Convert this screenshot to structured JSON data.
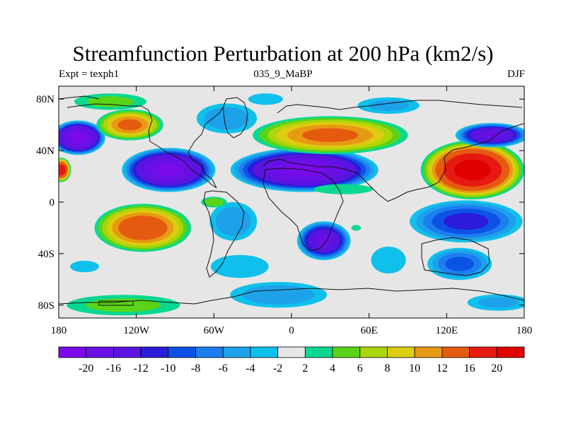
{
  "title": "Streamfunction Perturbation at 200 hPa (km2/s)",
  "subtitle_left": "Expt = texph1",
  "subtitle_center": "035_9_MaBP",
  "subtitle_right": "DJF",
  "x_ticks": [
    {
      "value": -180,
      "label": "180"
    },
    {
      "value": -120,
      "label": "120W"
    },
    {
      "value": -60,
      "label": "60W"
    },
    {
      "value": 0,
      "label": "0"
    },
    {
      "value": 60,
      "label": "60E"
    },
    {
      "value": 120,
      "label": "120E"
    },
    {
      "value": 180,
      "label": "180"
    }
  ],
  "y_ticks": [
    {
      "value": 80,
      "label": "80N"
    },
    {
      "value": 40,
      "label": "40N"
    },
    {
      "value": 0,
      "label": "0"
    },
    {
      "value": -40,
      "label": "40S"
    },
    {
      "value": -80,
      "label": "80S"
    }
  ],
  "colorbar": {
    "colors": [
      "#7a0aea",
      "#6a10e6",
      "#5a14e0",
      "#2a1cd8",
      "#0d52e6",
      "#1d7ef0",
      "#1da2ea",
      "#10c0ec",
      "#e6e6e6",
      "#0ad890",
      "#5ad418",
      "#aad60a",
      "#ddcc10",
      "#e69a14",
      "#e65a10",
      "#e61a10",
      "#e00000"
    ],
    "labels": [
      "-20",
      "-16",
      "-12",
      "-10",
      "-8",
      "-6",
      "-4",
      "-2",
      "2",
      "4",
      "6",
      "8",
      "10",
      "12",
      "16",
      "20"
    ]
  },
  "map_data": {
    "type": "filled-contour-map",
    "variable": "streamfunction perturbation",
    "units": "km2/s",
    "level": "200 hPa",
    "lon_range": [
      -180,
      180
    ],
    "lat_range": [
      -90,
      90
    ],
    "background_color": "#e6e6e6",
    "anomalies": [
      {
        "lon": -165,
        "lat": 50,
        "rx": 22,
        "ry": 14,
        "value": -21
      },
      {
        "lon": -178,
        "lat": 25,
        "rx": 8,
        "ry": 10,
        "value": 18
      },
      {
        "lon": -125,
        "lat": 60,
        "rx": 28,
        "ry": 13,
        "value": 12
      },
      {
        "lon": -140,
        "lat": 78,
        "rx": 35,
        "ry": 8,
        "value": 4
      },
      {
        "lon": -95,
        "lat": 25,
        "rx": 38,
        "ry": 18,
        "value": -20
      },
      {
        "lon": -50,
        "lat": 65,
        "rx": 28,
        "ry": 14,
        "value": -5
      },
      {
        "lon": -20,
        "lat": 80,
        "rx": 18,
        "ry": 6,
        "value": -3
      },
      {
        "lon": -115,
        "lat": -20,
        "rx": 40,
        "ry": 20,
        "value": 14
      },
      {
        "lon": -160,
        "lat": -50,
        "rx": 15,
        "ry": 6,
        "value": -3
      },
      {
        "lon": -130,
        "lat": -80,
        "rx": 55,
        "ry": 10,
        "value": 4
      },
      {
        "lon": -45,
        "lat": -15,
        "rx": 22,
        "ry": 18,
        "value": -5
      },
      {
        "lon": -60,
        "lat": 0,
        "rx": 12,
        "ry": 5,
        "value": 5
      },
      {
        "lon": -40,
        "lat": -50,
        "rx": 30,
        "ry": 12,
        "value": -3
      },
      {
        "lon": 10,
        "lat": 25,
        "rx": 60,
        "ry": 18,
        "value": -20
      },
      {
        "lon": 30,
        "lat": 52,
        "rx": 65,
        "ry": 16,
        "value": 12
      },
      {
        "lon": 40,
        "lat": 10,
        "rx": 35,
        "ry": 6,
        "value": 2
      },
      {
        "lon": 25,
        "lat": -30,
        "rx": 22,
        "ry": 16,
        "value": -16
      },
      {
        "lon": -10,
        "lat": -72,
        "rx": 45,
        "ry": 12,
        "value": -5
      },
      {
        "lon": 140,
        "lat": 25,
        "rx": 42,
        "ry": 24,
        "value": 21
      },
      {
        "lon": 155,
        "lat": 52,
        "rx": 30,
        "ry": 10,
        "value": -16
      },
      {
        "lon": 75,
        "lat": 75,
        "rx": 30,
        "ry": 8,
        "value": -4
      },
      {
        "lon": 135,
        "lat": -15,
        "rx": 48,
        "ry": 18,
        "value": -10
      },
      {
        "lon": 130,
        "lat": -48,
        "rx": 28,
        "ry": 14,
        "value": -8
      },
      {
        "lon": 75,
        "lat": -45,
        "rx": 18,
        "ry": 14,
        "value": -3
      },
      {
        "lon": 160,
        "lat": -78,
        "rx": 30,
        "ry": 8,
        "value": -4
      },
      {
        "lon": 50,
        "lat": -20,
        "rx": 5,
        "ry": 3,
        "value": 3
      }
    ]
  }
}
